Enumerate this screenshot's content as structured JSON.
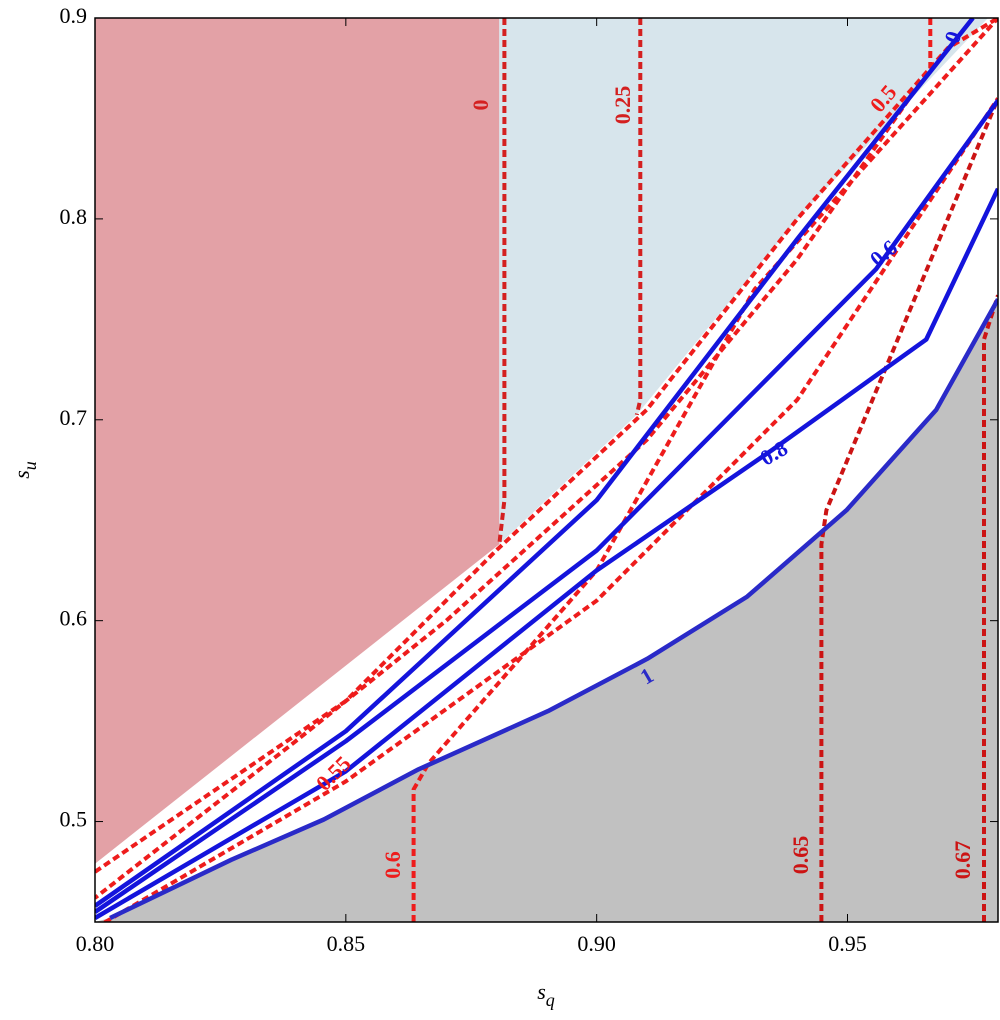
{
  "chart_data": {
    "type": "contour",
    "x_label": {
      "main": "s",
      "sub": "q"
    },
    "y_label": {
      "main": "s",
      "sub": "u"
    },
    "xlim": [
      0.8,
      0.98
    ],
    "ylim": [
      0.45,
      0.9
    ],
    "xticks": [
      {
        "value": 0.8,
        "label": "0.80"
      },
      {
        "value": 0.85,
        "label": "0.85"
      },
      {
        "value": 0.9,
        "label": "0.90"
      },
      {
        "value": 0.95,
        "label": "0.95"
      }
    ],
    "yticks": [
      0.5,
      0.6,
      0.7,
      0.8,
      0.9
    ],
    "regions": [
      {
        "color": "#e3a1a6",
        "x": [
          0.8,
          0.8806,
          0.8806,
          0.8
        ],
        "y": [
          0.9,
          0.9,
          0.638,
          0.479
        ]
      },
      {
        "color": "#d7e5ec",
        "x": [
          0.8806,
          0.978,
          0.94,
          0.908,
          0.8806
        ],
        "y": [
          0.9,
          0.9,
          0.8,
          0.7025,
          0.638
        ]
      },
      {
        "color": "#c1c1c1",
        "x": [
          0.8,
          0.803,
          0.8272,
          0.8456,
          0.8645,
          0.8903,
          0.9101,
          0.93,
          0.9498,
          0.9677,
          0.98,
          0.98
        ],
        "y": [
          0.45,
          0.452,
          0.481,
          0.501,
          0.526,
          0.555,
          0.581,
          0.612,
          0.655,
          0.705,
          0.76,
          0.45
        ]
      }
    ],
    "contours": [
      {
        "label": "0",
        "color": "#d42020",
        "style": "dashed",
        "x": [
          0.8816,
          0.8816,
          0.8806
        ],
        "y": [
          0.9,
          0.66,
          0.638
        ]
      },
      {
        "label": "0.25",
        "color": "#d42020",
        "style": "dashed",
        "x": [
          0.9087,
          0.9087,
          0.908
        ],
        "y": [
          0.9,
          0.71,
          0.7025
        ]
      },
      {
        "label": "0.5",
        "color": "#ee1c1c",
        "style": "dashed",
        "x": [
          0.9665,
          0.9665,
          0.94,
          0.91,
          0.87,
          0.84,
          0.8
        ],
        "y": [
          0.9,
          0.875,
          0.78,
          0.69,
          0.6,
          0.54,
          0.462
        ]
      },
      {
        "label": null,
        "color": "#ee1c1c",
        "style": "dashed",
        "x": [
          0.8,
          0.85,
          0.88,
          0.91,
          0.94,
          0.97,
          0.98
        ],
        "y": [
          0.475,
          0.56,
          0.635,
          0.705,
          0.8,
          0.885,
          0.9
        ]
      },
      {
        "label": "0.55",
        "color": "#ee1c1c",
        "style": "dashed",
        "x": [
          0.8,
          0.85,
          0.9,
          0.94,
          0.98
        ],
        "y": [
          0.447,
          0.52,
          0.61,
          0.71,
          0.86
        ]
      },
      {
        "label": "0.6",
        "color": "#ee1c1c",
        "style": "dashed",
        "x": [
          0.8635,
          0.8635,
          0.8665,
          0.9,
          0.9315,
          0.98
        ],
        "y": [
          0.45,
          0.516,
          0.529,
          0.625,
          0.765,
          0.9
        ]
      },
      {
        "label": "0.65",
        "color": "#cc1414",
        "style": "dashed",
        "x": [
          0.9448,
          0.9448,
          0.9458,
          0.96,
          0.98
        ],
        "y": [
          0.45,
          0.638,
          0.655,
          0.74,
          0.86
        ]
      },
      {
        "label": "0.67",
        "color": "#cc1414",
        "style": "dashed",
        "x": [
          0.9772,
          0.9772,
          0.98
        ],
        "y": [
          0.45,
          0.74,
          0.762
        ]
      },
      {
        "label": "0",
        "color": "#1414dc",
        "style": "solid",
        "x": [
          0.8,
          0.85,
          0.9,
          0.94,
          0.975
        ],
        "y": [
          0.458,
          0.545,
          0.66,
          0.79,
          0.9
        ]
      },
      {
        "label": "0.6",
        "color": "#1414dc",
        "style": "solid",
        "x": [
          0.8,
          0.85,
          0.9,
          0.9557,
          0.98
        ],
        "y": [
          0.455,
          0.54,
          0.635,
          0.775,
          0.859
        ]
      },
      {
        "label": "0.8",
        "color": "#1414dc",
        "style": "solid",
        "x": [
          0.8,
          0.85,
          0.9,
          0.935,
          0.9657,
          0.98
        ],
        "y": [
          0.452,
          0.525,
          0.625,
          0.685,
          0.74,
          0.815
        ]
      },
      {
        "label": "1",
        "color": "#2a2ac8",
        "style": "solid",
        "x": [
          0.803,
          0.8272,
          0.8456,
          0.8645,
          0.8903,
          0.9101,
          0.93,
          0.9498,
          0.9677,
          0.98
        ],
        "y": [
          0.452,
          0.481,
          0.501,
          0.526,
          0.555,
          0.581,
          0.612,
          0.655,
          0.705,
          0.76
        ]
      }
    ]
  }
}
